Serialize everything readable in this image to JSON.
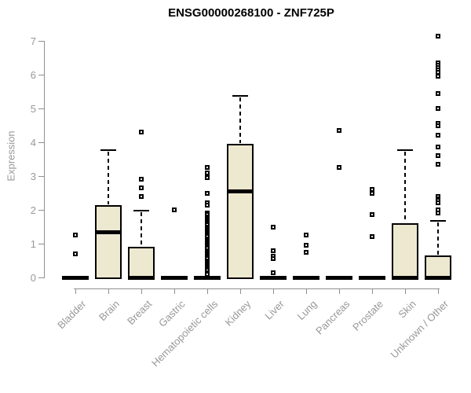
{
  "page": {
    "background": "#ffffff"
  },
  "chart_data": {
    "type": "box",
    "title": "ENSG00000268100 - ZNF725P",
    "ylabel": "Expression",
    "xlabel": "",
    "ylim": [
      0,
      7
    ],
    "yticks": [
      0,
      1,
      2,
      3,
      4,
      5,
      6,
      7
    ],
    "grid": false,
    "legend": null,
    "categories": [
      "Bladder",
      "Brain",
      "Breast",
      "Gastric",
      "Hematopoietic cells",
      "Kidney",
      "Liver",
      "Lung",
      "Pancreas",
      "Prostate",
      "Skin",
      "Unknown / Other"
    ],
    "series": [
      {
        "name": "Bladder",
        "q1": 0,
        "median": 0,
        "q3": 0,
        "whisker_low": 0,
        "whisker_high": 0,
        "outliers": [
          1.25,
          0.7
        ]
      },
      {
        "name": "Brain",
        "q1": 0,
        "median": 1.35,
        "q3": 2.15,
        "whisker_low": 0,
        "whisker_high": 3.8,
        "outliers": []
      },
      {
        "name": "Breast",
        "q1": 0,
        "median": 0,
        "q3": 0.9,
        "whisker_low": 0,
        "whisker_high": 2.0,
        "outliers": [
          2.4,
          2.65,
          2.9,
          4.3
        ]
      },
      {
        "name": "Gastric",
        "q1": 0,
        "median": 0,
        "q3": 0,
        "whisker_low": 0,
        "whisker_high": 0,
        "outliers": [
          2.0
        ]
      },
      {
        "name": "Hematopoietic cells",
        "q1": 0,
        "median": 0,
        "q3": 0,
        "whisker_low": 0,
        "whisker_high": 0,
        "outliers": [
          3.25,
          3.1,
          2.95,
          2.5,
          2.2,
          2.15,
          1.9,
          1.85,
          1.8,
          1.75,
          1.7,
          1.65,
          1.6,
          1.55,
          1.5,
          1.45,
          1.4,
          1.35,
          1.3,
          1.25,
          1.2,
          1.15,
          1.1,
          1.05,
          1.0,
          0.95,
          0.9,
          0.85,
          0.8,
          0.75,
          0.7,
          0.65,
          0.6,
          0.55,
          0.5,
          0.45,
          0.4,
          0.35,
          0.3,
          0.25,
          0.2,
          0.15,
          0.1
        ]
      },
      {
        "name": "Kidney",
        "q1": 0,
        "median": 2.55,
        "q3": 3.95,
        "whisker_low": 0,
        "whisker_high": 5.4,
        "outliers": []
      },
      {
        "name": "Liver",
        "q1": 0,
        "median": 0,
        "q3": 0,
        "whisker_low": 0,
        "whisker_high": 0,
        "outliers": [
          1.5,
          0.8,
          0.62,
          0.55,
          0.15
        ]
      },
      {
        "name": "Lung",
        "q1": 0,
        "median": 0,
        "q3": 0,
        "whisker_low": 0,
        "whisker_high": 0,
        "outliers": [
          1.25,
          0.95,
          0.75
        ]
      },
      {
        "name": "Pancreas",
        "q1": 0,
        "median": 0,
        "q3": 0,
        "whisker_low": 0,
        "whisker_high": 0,
        "outliers": [
          4.35,
          3.25
        ]
      },
      {
        "name": "Prostate",
        "q1": 0,
        "median": 0,
        "q3": 0,
        "whisker_low": 0,
        "whisker_high": 0,
        "outliers": [
          2.6,
          2.48,
          1.85,
          1.2
        ]
      },
      {
        "name": "Skin",
        "q1": 0,
        "median": 0,
        "q3": 1.6,
        "whisker_low": 0,
        "whisker_high": 3.8,
        "outliers": []
      },
      {
        "name": "Unknown / Other",
        "q1": 0,
        "median": 0,
        "q3": 0.65,
        "whisker_low": 0,
        "whisker_high": 1.7,
        "outliers": [
          7.15,
          6.35,
          6.28,
          6.22,
          6.15,
          6.08,
          5.95,
          5.45,
          5.0,
          4.55,
          4.5,
          4.2,
          3.85,
          3.6,
          3.35,
          2.4,
          2.33,
          2.27,
          2.2,
          2.0,
          1.9
        ]
      }
    ],
    "colors": {
      "box_fill": "#EDE8D0",
      "box_border": "#000000",
      "median": "#000000",
      "whisker": "#000000",
      "outlier": "#000000",
      "axis": "#909090",
      "tick_label": "#989898",
      "title": "#000000"
    }
  }
}
